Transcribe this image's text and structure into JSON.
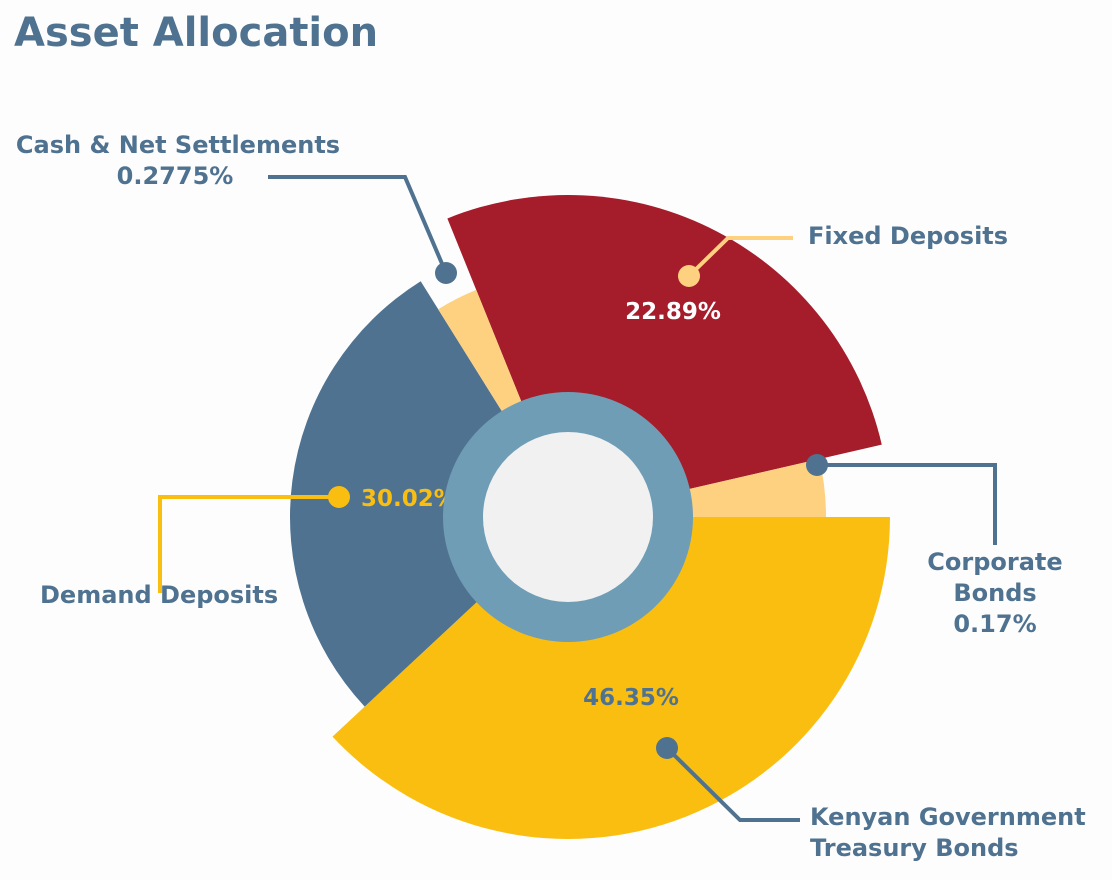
{
  "chart_data": {
    "type": "pie",
    "title": "Asset Allocation",
    "style": "rose-donut",
    "categories": [
      "Fixed Deposits",
      "Corporate Bonds",
      "Kenyan Government Treasury Bonds",
      "Demand Deposits",
      "Cash & Net Settlements"
    ],
    "values": [
      22.89,
      0.17,
      46.35,
      30.02,
      0.2775
    ],
    "value_labels": [
      "22.89%",
      "0.17%",
      "46.35%",
      "30.02%",
      "0.2775%"
    ],
    "colors": [
      "#a51c2b",
      "#fdd17f",
      "#f9be10",
      "#4f7290",
      "#fdd17f"
    ],
    "center_ring_color": "#6e9db5",
    "center_fill_color": "#f1f1f1",
    "legend": "callouts"
  },
  "labels": {
    "fixed_deposits": {
      "name": "Fixed Deposits",
      "value": "22.89%"
    },
    "corporate_bonds": {
      "name_line1": "Corporate",
      "name_line2": "Bonds",
      "value": "0.17%"
    },
    "kenyan_bonds": {
      "name_line1": "Kenyan Government",
      "name_line2": "Treasury Bonds",
      "value": "46.35%"
    },
    "demand_deposits": {
      "name": "Demand Deposits",
      "value": "30.02%"
    },
    "cash": {
      "name": "Cash & Net Settlements",
      "value": "0.2775%"
    }
  }
}
